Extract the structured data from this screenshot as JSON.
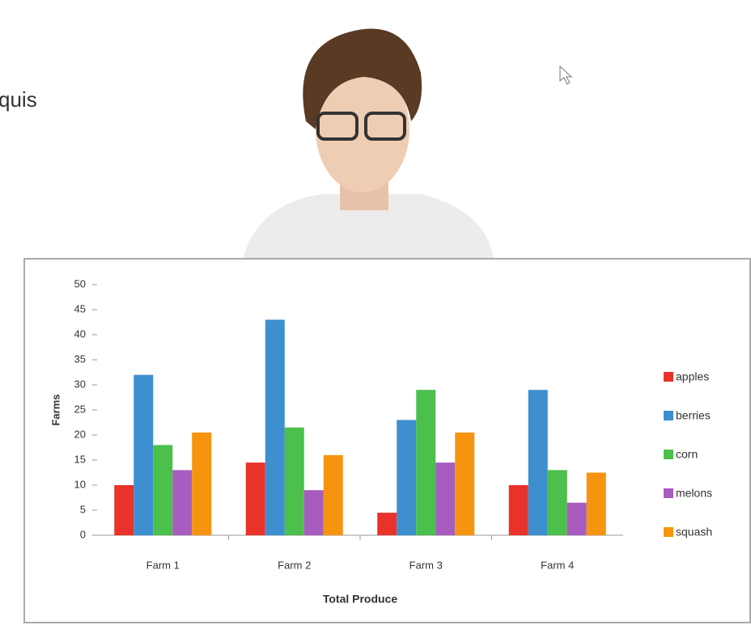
{
  "slide": {
    "text": "quis"
  },
  "chart_data": {
    "type": "bar",
    "xlabel": "Total Produce",
    "ylabel": "Farms",
    "categories": [
      "Farm 1",
      "Farm 2",
      "Farm 3",
      "Farm 4"
    ],
    "series": [
      {
        "name": "apples",
        "color": "#e8322a",
        "values": [
          10,
          14.5,
          4.5,
          10
        ]
      },
      {
        "name": "berries",
        "color": "#3d8fd0",
        "values": [
          32,
          43,
          23,
          29
        ]
      },
      {
        "name": "corn",
        "color": "#4cc04c",
        "values": [
          18,
          21.5,
          29,
          13
        ]
      },
      {
        "name": "melons",
        "color": "#a85cc0",
        "values": [
          13,
          9,
          14.5,
          6.5
        ]
      },
      {
        "name": "squash",
        "color": "#f7940f",
        "values": [
          20.5,
          16,
          20.5,
          12.5
        ]
      }
    ],
    "ylim": [
      0,
      50
    ],
    "yticks": [
      0,
      5,
      10,
      15,
      20,
      25,
      30,
      35,
      40,
      45,
      50
    ],
    "grid": false,
    "legend": "right"
  }
}
